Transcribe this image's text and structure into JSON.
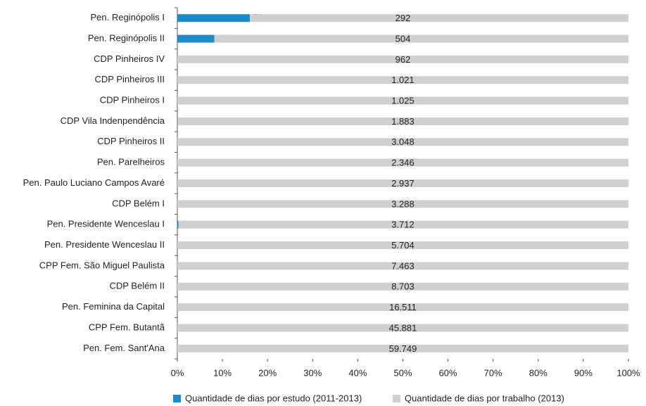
{
  "chart_data": {
    "type": "bar",
    "orientation": "horizontal",
    "stacking": "percent",
    "categories": [
      "Pen. Reginópolis I",
      "Pen. Reginópolis II",
      "CDP Pinheiros IV",
      "CDP Pinheiros III",
      "CDP Pinheiros I",
      "CDP Vila Indenpendência",
      "CDP Pinheiros II",
      "Pen. Parelheiros",
      "Pen. Paulo Luciano Campos Avaré",
      "CDP Belém I",
      "Pen. Presidente Wenceslau I",
      "Pen. Presidente Wenceslau II",
      "CPP Fem. São Miguel Paulista",
      "CDP Belém II",
      "Pen. Feminina da Capital",
      "CPP Fem. Butantã",
      "Pen. Fem. Sant'Ana"
    ],
    "series": [
      {
        "name": "Quantidade de dias por estudo (2011-2013)",
        "color": "#1a8ccc",
        "values": [
          56,
          45,
          null,
          null,
          null,
          1,
          null,
          null,
          null,
          null,
          9,
          null,
          null,
          null,
          null,
          null,
          null
        ]
      },
      {
        "name": "Quantidade de dias por trabalho (2013)",
        "color": "#d0d0d0",
        "values": [
          292,
          504,
          962,
          1021,
          1025,
          1883,
          3048,
          2346,
          2937,
          3288,
          3712,
          5704,
          7463,
          8703,
          16511,
          45881,
          59749
        ],
        "value_labels": [
          "292",
          "504",
          "962",
          "1.021",
          "1.025",
          "1.883",
          "3.048",
          "2.346",
          "2.937",
          "3.288",
          "3.712",
          "5.704",
          "7.463",
          "8.703",
          "16.511",
          "45.881",
          "59.749"
        ]
      }
    ],
    "xlim": [
      0,
      100
    ],
    "xticks": [
      {
        "value": 0,
        "label": "0%"
      },
      {
        "value": 10,
        "label": "10%"
      },
      {
        "value": 20,
        "label": "20%"
      },
      {
        "value": 30,
        "label": "30%"
      },
      {
        "value": 40,
        "label": "40%"
      },
      {
        "value": 50,
        "label": "50%"
      },
      {
        "value": 60,
        "label": "60%"
      },
      {
        "value": 70,
        "label": "70%"
      },
      {
        "value": 80,
        "label": "80%"
      },
      {
        "value": 90,
        "label": "90%"
      },
      {
        "value": 100,
        "label": "100%"
      }
    ],
    "legend": "bottom"
  }
}
